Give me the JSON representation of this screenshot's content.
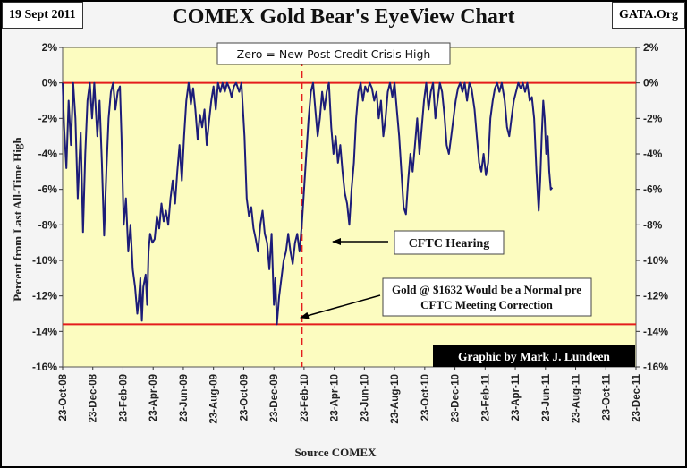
{
  "header": {
    "date": "19 Sept 2011",
    "source_site": "GATA.Org"
  },
  "chart_data": {
    "type": "line",
    "title": "COMEX Gold Bear's EyeView Chart",
    "xlabel": "Source COMEX",
    "ylabel": "Percent from Last All-Time High",
    "ylim": [
      -16,
      2
    ],
    "yticks": [
      2,
      0,
      -2,
      -4,
      -6,
      -8,
      -10,
      -12,
      -14,
      -16
    ],
    "ytick_labels": [
      "2%",
      "0%",
      "-2%",
      "-4%",
      "-6%",
      "-8%",
      "-10%",
      "-12%",
      "-14%",
      "-16%"
    ],
    "xlim_months": [
      0,
      38
    ],
    "xtick_labels": [
      "23-Oct-08",
      "23-Dec-08",
      "23-Feb-09",
      "23-Apr-09",
      "23-Jun-09",
      "23-Aug-09",
      "23-Oct-09",
      "23-Dec-09",
      "23-Feb-10",
      "23-Apr-10",
      "23-Jun-10",
      "23-Aug-10",
      "23-Oct-10",
      "23-Dec-10",
      "23-Feb-11",
      "23-Apr-11",
      "23-Jun-11",
      "23-Aug-11",
      "23-Oct-11",
      "23-Dec-11"
    ],
    "series": [
      {
        "name": "Percent from Last All-Time High",
        "color": "#1c1c78",
        "points": [
          [
            0.0,
            0
          ],
          [
            0.1,
            -2.5
          ],
          [
            0.25,
            -4.8
          ],
          [
            0.4,
            -1.0
          ],
          [
            0.55,
            -3.5
          ],
          [
            0.7,
            0
          ],
          [
            0.85,
            -2.0
          ],
          [
            1.0,
            -6.5
          ],
          [
            1.2,
            -2.8
          ],
          [
            1.35,
            -8.4
          ],
          [
            1.5,
            -4.0
          ],
          [
            1.65,
            -1.0
          ],
          [
            1.8,
            0
          ],
          [
            1.95,
            -2.0
          ],
          [
            2.1,
            0
          ],
          [
            2.3,
            -3.0
          ],
          [
            2.45,
            -1.0
          ],
          [
            2.6,
            -4.5
          ],
          [
            2.75,
            -8.6
          ],
          [
            2.9,
            -5.0
          ],
          [
            3.05,
            -2.0
          ],
          [
            3.2,
            -0.5
          ],
          [
            3.35,
            0
          ],
          [
            3.5,
            -1.5
          ],
          [
            3.65,
            -0.5
          ],
          [
            3.8,
            -0.2
          ],
          [
            3.9,
            -3.0
          ],
          [
            4.05,
            -8.0
          ],
          [
            4.2,
            -6.5
          ],
          [
            4.35,
            -9.5
          ],
          [
            4.5,
            -8.0
          ],
          [
            4.65,
            -10.5
          ],
          [
            4.8,
            -11.5
          ],
          [
            4.95,
            -13.0
          ],
          [
            5.05,
            -12.2
          ],
          [
            5.15,
            -11.0
          ],
          [
            5.25,
            -13.4
          ],
          [
            5.35,
            -11.5
          ],
          [
            5.5,
            -10.8
          ],
          [
            5.6,
            -12.5
          ],
          [
            5.7,
            -9.5
          ],
          [
            5.8,
            -8.5
          ],
          [
            5.95,
            -9.0
          ],
          [
            6.1,
            -8.8
          ],
          [
            6.25,
            -7.5
          ],
          [
            6.4,
            -8.2
          ],
          [
            6.55,
            -6.8
          ],
          [
            6.7,
            -7.8
          ],
          [
            6.85,
            -7.2
          ],
          [
            7.0,
            -8.0
          ],
          [
            7.15,
            -6.5
          ],
          [
            7.3,
            -5.5
          ],
          [
            7.45,
            -6.8
          ],
          [
            7.6,
            -5.0
          ],
          [
            7.75,
            -3.5
          ],
          [
            7.9,
            -5.5
          ],
          [
            8.05,
            -3.0
          ],
          [
            8.2,
            -1.0
          ],
          [
            8.35,
            0
          ],
          [
            8.5,
            -1.2
          ],
          [
            8.65,
            -0.3
          ],
          [
            8.8,
            -1.5
          ],
          [
            8.95,
            -3.2
          ],
          [
            9.1,
            -1.8
          ],
          [
            9.25,
            -2.5
          ],
          [
            9.4,
            -1.5
          ],
          [
            9.55,
            -3.5
          ],
          [
            9.7,
            -2.2
          ],
          [
            9.85,
            -1.0
          ],
          [
            10.0,
            -0.2
          ],
          [
            10.15,
            -1.5
          ],
          [
            10.3,
            0
          ],
          [
            10.45,
            -0.5
          ],
          [
            10.6,
            0
          ],
          [
            10.75,
            -0.5
          ],
          [
            10.9,
            0
          ],
          [
            11.05,
            -0.3
          ],
          [
            11.2,
            -0.8
          ],
          [
            11.35,
            -0.2
          ],
          [
            11.5,
            0
          ],
          [
            11.7,
            -0.5
          ],
          [
            11.85,
            0
          ],
          [
            12.05,
            -3.0
          ],
          [
            12.2,
            -6.5
          ],
          [
            12.35,
            -7.5
          ],
          [
            12.5,
            -7.0
          ],
          [
            12.65,
            -8.2
          ],
          [
            12.8,
            -8.8
          ],
          [
            12.95,
            -9.5
          ],
          [
            13.1,
            -8.0
          ],
          [
            13.25,
            -7.2
          ],
          [
            13.4,
            -8.5
          ],
          [
            13.55,
            -9.0
          ],
          [
            13.7,
            -10.5
          ],
          [
            13.85,
            -8.5
          ],
          [
            14.0,
            -12.5
          ],
          [
            14.1,
            -11.0
          ],
          [
            14.2,
            -13.6
          ],
          [
            14.35,
            -12.0
          ],
          [
            14.5,
            -11.0
          ],
          [
            14.65,
            -10.0
          ],
          [
            14.8,
            -9.5
          ],
          [
            14.95,
            -8.5
          ],
          [
            15.1,
            -9.5
          ],
          [
            15.25,
            -10.2
          ],
          [
            15.4,
            -9.0
          ],
          [
            15.55,
            -8.5
          ],
          [
            15.7,
            -9.5
          ],
          [
            15.85,
            -8.0
          ],
          [
            16.0,
            -6.0
          ],
          [
            16.15,
            -4.0
          ],
          [
            16.3,
            -2.0
          ],
          [
            16.45,
            -0.5
          ],
          [
            16.6,
            0
          ],
          [
            16.75,
            -1.5
          ],
          [
            16.9,
            -3.0
          ],
          [
            17.05,
            -2.0
          ],
          [
            17.2,
            -0.5
          ],
          [
            17.35,
            -1.5
          ],
          [
            17.5,
            -0.5
          ],
          [
            17.65,
            0
          ],
          [
            17.8,
            -2.5
          ],
          [
            17.95,
            -4.0
          ],
          [
            18.1,
            -3.0
          ],
          [
            18.25,
            -4.5
          ],
          [
            18.4,
            -3.5
          ],
          [
            18.55,
            -5.0
          ],
          [
            18.7,
            -6.2
          ],
          [
            18.85,
            -6.8
          ],
          [
            19.0,
            -8.0
          ],
          [
            19.15,
            -6.0
          ],
          [
            19.3,
            -4.5
          ],
          [
            19.45,
            -2.0
          ],
          [
            19.6,
            -0.5
          ],
          [
            19.75,
            0
          ],
          [
            19.9,
            -1.0
          ],
          [
            20.05,
            -0.2
          ],
          [
            20.2,
            -0.5
          ],
          [
            20.35,
            0
          ],
          [
            20.5,
            -0.3
          ],
          [
            20.65,
            -1.0
          ],
          [
            20.8,
            -0.5
          ],
          [
            20.95,
            -2.0
          ],
          [
            21.1,
            -1.0
          ],
          [
            21.25,
            -3.0
          ],
          [
            21.4,
            -2.0
          ],
          [
            21.55,
            -0.5
          ],
          [
            21.7,
            0
          ],
          [
            21.85,
            -0.8
          ],
          [
            22.0,
            0
          ],
          [
            22.15,
            -1.5
          ],
          [
            22.3,
            -3.0
          ],
          [
            22.45,
            -5.0
          ],
          [
            22.6,
            -7.0
          ],
          [
            22.75,
            -7.4
          ],
          [
            22.9,
            -5.5
          ],
          [
            23.05,
            -4.0
          ],
          [
            23.2,
            -5.0
          ],
          [
            23.35,
            -3.5
          ],
          [
            23.5,
            -2.0
          ],
          [
            23.65,
            -4.0
          ],
          [
            23.8,
            -2.5
          ],
          [
            23.95,
            -1.0
          ],
          [
            24.1,
            0
          ],
          [
            24.25,
            -1.5
          ],
          [
            24.4,
            -0.5
          ],
          [
            24.55,
            0
          ],
          [
            24.7,
            -2.0
          ],
          [
            24.85,
            -1.0
          ],
          [
            25.0,
            0
          ],
          [
            25.15,
            -0.5
          ],
          [
            25.3,
            -1.8
          ],
          [
            25.45,
            -3.5
          ],
          [
            25.6,
            -4.0
          ],
          [
            25.75,
            -3.0
          ],
          [
            25.9,
            -2.0
          ],
          [
            26.05,
            -1.0
          ],
          [
            26.2,
            -0.3
          ],
          [
            26.35,
            0
          ],
          [
            26.5,
            -0.5
          ],
          [
            26.65,
            0
          ],
          [
            26.8,
            -1.0
          ],
          [
            26.95,
            0
          ],
          [
            27.1,
            -0.3
          ],
          [
            27.3,
            -1.5
          ],
          [
            27.45,
            -3.0
          ],
          [
            27.6,
            -4.5
          ],
          [
            27.75,
            -5.0
          ],
          [
            27.9,
            -4.0
          ],
          [
            28.05,
            -5.2
          ],
          [
            28.2,
            -4.5
          ],
          [
            28.35,
            -2.0
          ],
          [
            28.5,
            -1.0
          ],
          [
            28.65,
            -0.3
          ],
          [
            28.8,
            0
          ],
          [
            28.95,
            -0.5
          ],
          [
            29.1,
            0
          ],
          [
            29.3,
            -1.0
          ],
          [
            29.45,
            -2.5
          ],
          [
            29.6,
            -3.0
          ],
          [
            29.75,
            -2.0
          ],
          [
            29.9,
            -1.0
          ],
          [
            30.05,
            -0.5
          ],
          [
            30.2,
            0
          ],
          [
            30.35,
            -0.3
          ],
          [
            30.5,
            0
          ],
          [
            30.65,
            -0.5
          ],
          [
            30.8,
            0
          ],
          [
            30.95,
            -1.0
          ],
          [
            31.1,
            -0.8
          ],
          [
            31.25,
            -2.0
          ],
          [
            31.4,
            -5.0
          ],
          [
            31.55,
            -7.2
          ],
          [
            31.65,
            -5.5
          ],
          [
            31.75,
            -3.0
          ],
          [
            31.85,
            -1.0
          ],
          [
            31.95,
            -2.0
          ],
          [
            32.05,
            -4.0
          ],
          [
            32.15,
            -3.0
          ],
          [
            32.25,
            -5.0
          ],
          [
            32.35,
            -6.0
          ],
          [
            32.45,
            -5.9
          ]
        ]
      }
    ],
    "reference_lines": [
      {
        "kind": "horizontal",
        "y": 0,
        "color": "#e41c1c",
        "style": "solid"
      },
      {
        "kind": "horizontal",
        "y": -13.6,
        "color": "#e41c1c",
        "style": "solid"
      },
      {
        "kind": "vertical",
        "x": 15.85,
        "color": "#e41c1c",
        "style": "dashed"
      }
    ],
    "annotations": [
      {
        "text": "Zero = New Post Credit Crisis High",
        "target": [
          null,
          0
        ]
      },
      {
        "text": "CFTC Hearing",
        "target": [
          15.85,
          -9.0
        ]
      },
      {
        "lines": [
          "Gold @ $1632 Would be a Normal pre",
          "CFTC Meeting Correction"
        ],
        "target": [
          14.2,
          -13.3
        ]
      }
    ],
    "credit": "Graphic by Mark J. Lundeen"
  }
}
